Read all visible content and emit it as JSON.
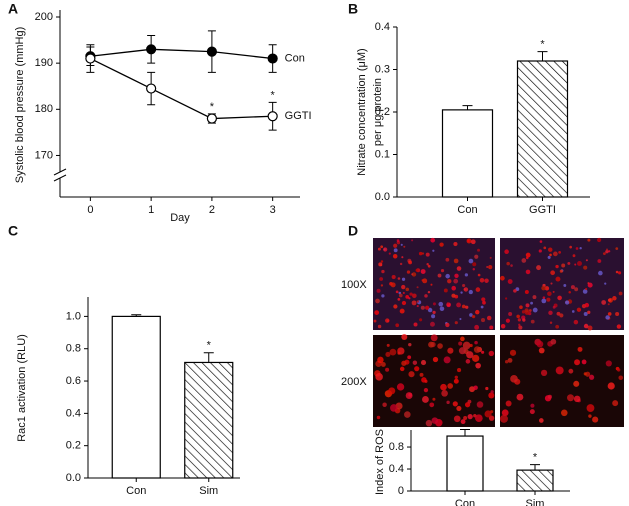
{
  "chart_data": [
    {
      "type": "line",
      "panel": "A",
      "ylabel": [
        "Systolic blood pressure (mmHg)"
      ],
      "xlabel": "Day",
      "x": [
        0,
        1,
        2,
        3
      ],
      "xlim": [
        -0.5,
        3.45
      ],
      "xticks": [
        0,
        1,
        2,
        3
      ],
      "ylim": [
        161,
        200
      ],
      "yticks": [
        170,
        180,
        190,
        200
      ],
      "axis_break": true,
      "series": [
        {
          "name": "Con",
          "color": "#000000",
          "marker_fill": "#000000",
          "values": [
            191.5,
            193,
            192.5,
            191
          ],
          "errors": [
            2,
            3,
            4.5,
            3
          ]
        },
        {
          "name": "GGTI",
          "color": "#000000",
          "marker_fill": "#ffffff",
          "values": [
            191,
            184.5,
            178,
            178.5
          ],
          "errors": [
            3,
            3.5,
            1,
            3
          ]
        }
      ],
      "annotations": [
        {
          "text": "*",
          "x": 2,
          "series": "GGTI"
        },
        {
          "text": "*",
          "x": 3,
          "series": "GGTI"
        }
      ]
    },
    {
      "type": "bar",
      "panel": "B",
      "ylabel": [
        "Nitrate concentration (μM)",
        "per μg protein"
      ],
      "categories": [
        "Con",
        "GGTI"
      ],
      "values": [
        0.205,
        0.32
      ],
      "errors": [
        0.01,
        0.022
      ],
      "hatch": [
        false,
        true
      ],
      "color": "#ffffff",
      "ylim": [
        0,
        0.4
      ],
      "yticks": [
        {
          "value": 0,
          "label": "0.0"
        },
        0.1,
        0.2,
        0.3,
        0.4
      ],
      "annotations": [
        {
          "text": "*",
          "category": "GGTI"
        }
      ]
    },
    {
      "type": "bar",
      "panel": "C",
      "ylabel": [
        "Rac1 activation (RLU)"
      ],
      "categories": [
        "Con",
        "Sim"
      ],
      "values": [
        1.0,
        0.715
      ],
      "errors": [
        0.01,
        0.06
      ],
      "hatch": [
        false,
        true
      ],
      "color": "#ffffff",
      "ylim": [
        0,
        1.12
      ],
      "yticks": [
        {
          "value": 0,
          "label": "0.0"
        },
        0.2,
        0.4,
        0.6,
        0.8,
        {
          "value": 1,
          "label": "1.0"
        }
      ],
      "annotations": [
        {
          "text": "*",
          "category": "Sim"
        }
      ]
    },
    {
      "type": "bar",
      "panel": "D",
      "ylabel": [
        "Index of ROS"
      ],
      "image_rows": [
        "100X",
        "200X"
      ],
      "categories": [
        "Con",
        "Sim"
      ],
      "values": [
        1.0,
        0.38
      ],
      "errors": [
        0.12,
        0.1
      ],
      "hatch": [
        false,
        true
      ],
      "color": "#ffffff",
      "ylim": [
        0,
        1.11
      ],
      "yticks": [
        0,
        0.4,
        0.8
      ],
      "annotations": [
        {
          "text": "*",
          "category": "Sim"
        }
      ]
    }
  ]
}
